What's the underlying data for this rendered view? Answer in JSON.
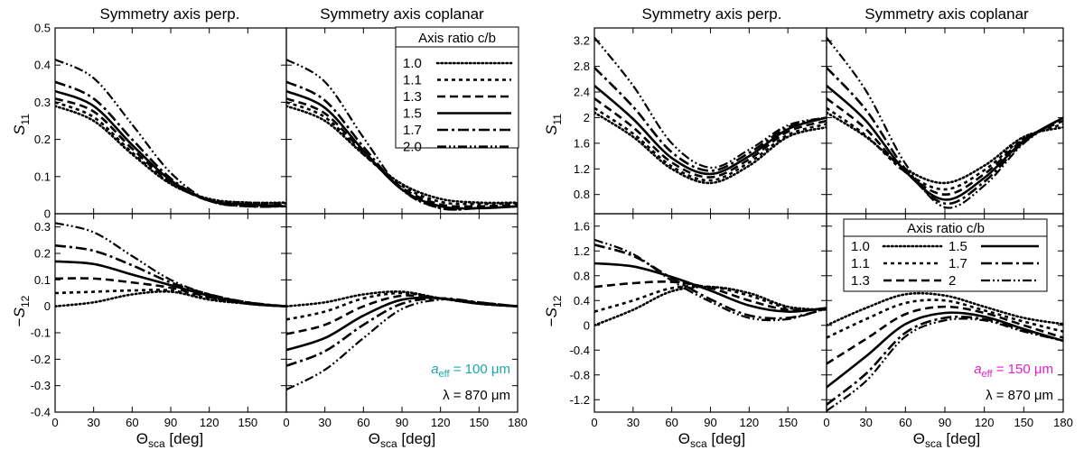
{
  "colors": {
    "cyan_annotation": "#1aa7a7",
    "magenta_annotation": "#e020d0",
    "ink": "#000000"
  },
  "figure": {
    "left_group": {
      "title_perp": "Symmetry axis perp.",
      "title_copl": "Symmetry axis coplanar"
    },
    "right_group": {
      "title_perp": "Symmetry axis perp.",
      "title_copl": "Symmetry axis coplanar"
    },
    "ylabel_s11": {
      "main": "S",
      "sub": "11"
    },
    "ylabel_s12": {
      "prefix": "−",
      "main": "S",
      "sub": "12"
    },
    "xlabel": {
      "main": "Θ",
      "sub": "sca",
      "suffix": " [deg]"
    },
    "annot_left": {
      "a": "a",
      "sub": "eff",
      "value": " = 100 μm"
    },
    "annot_right": {
      "a": "a",
      "sub": "eff",
      "value": " = 150 μm"
    },
    "lambda_left": "λ = 870 μm",
    "lambda_right": "λ = 870 μm",
    "legend_title": "Axis ratio c/b",
    "legend_labels_left": [
      "1.0",
      "1.1",
      "1.3",
      "1.5",
      "1.7",
      "2.0"
    ],
    "legend_labels_right": [
      "1.0",
      "1.1",
      "1.3",
      "1.5",
      "1.7",
      "2"
    ]
  },
  "chart_data": {
    "type": "line",
    "legend_title": "Axis ratio c/b",
    "series_names": [
      "1.0",
      "1.1",
      "1.3",
      "1.5",
      "1.7",
      "2.0"
    ],
    "x": [
      0,
      30,
      60,
      90,
      120,
      150,
      180
    ],
    "xlabel": "Θsca [deg]",
    "xticks_left": [
      0,
      30,
      60,
      90,
      120,
      150
    ],
    "xticks_right": [
      0,
      30,
      60,
      90,
      120,
      150,
      180
    ],
    "panels": [
      {
        "id": "L_S11_perp",
        "title": "Symmetry axis perp.",
        "ylabel": "S11",
        "ylim": [
          0,
          0.5
        ],
        "yticks": [
          0,
          0.1,
          0.2,
          0.3,
          0.4,
          0.5
        ],
        "series": [
          [
            0.29,
            0.25,
            0.16,
            0.08,
            0.04,
            0.03,
            0.03
          ],
          [
            0.3,
            0.26,
            0.165,
            0.082,
            0.038,
            0.03,
            0.028
          ],
          [
            0.31,
            0.275,
            0.175,
            0.085,
            0.035,
            0.025,
            0.025
          ],
          [
            0.33,
            0.29,
            0.185,
            0.09,
            0.035,
            0.025,
            0.02
          ],
          [
            0.355,
            0.31,
            0.2,
            0.095,
            0.035,
            0.02,
            0.02
          ],
          [
            0.415,
            0.365,
            0.24,
            0.11,
            0.035,
            0.02,
            0.02
          ]
        ]
      },
      {
        "id": "L_S11_copl",
        "title": "Symmetry axis coplanar",
        "ylabel": "S11",
        "ylim": [
          0,
          0.5
        ],
        "yticks": [
          0,
          0.1,
          0.2,
          0.3,
          0.4,
          0.5
        ],
        "series": [
          [
            0.29,
            0.25,
            0.16,
            0.08,
            0.04,
            0.03,
            0.03
          ],
          [
            0.3,
            0.26,
            0.16,
            0.075,
            0.032,
            0.026,
            0.028
          ],
          [
            0.31,
            0.27,
            0.165,
            0.07,
            0.025,
            0.02,
            0.025
          ],
          [
            0.33,
            0.285,
            0.17,
            0.065,
            0.02,
            0.015,
            0.02
          ],
          [
            0.355,
            0.305,
            0.18,
            0.065,
            0.015,
            0.015,
            0.02
          ],
          [
            0.415,
            0.355,
            0.205,
            0.065,
            0.015,
            0.015,
            0.02
          ]
        ]
      },
      {
        "id": "L_S12_perp",
        "title": "Symmetry axis perp.",
        "ylabel": "−S12",
        "ylim": [
          -0.4,
          0.35
        ],
        "yticks": [
          -0.4,
          -0.3,
          -0.2,
          -0.1,
          0,
          0.1,
          0.2,
          0.3
        ],
        "series": [
          [
            0.0,
            0.015,
            0.045,
            0.055,
            0.025,
            0.01,
            0.0
          ],
          [
            0.05,
            0.055,
            0.06,
            0.06,
            0.03,
            0.01,
            0.0
          ],
          [
            0.105,
            0.105,
            0.09,
            0.07,
            0.035,
            0.01,
            0.0
          ],
          [
            0.17,
            0.16,
            0.12,
            0.08,
            0.04,
            0.01,
            0.0
          ],
          [
            0.23,
            0.21,
            0.155,
            0.09,
            0.045,
            0.015,
            0.0
          ],
          [
            0.315,
            0.28,
            0.19,
            0.1,
            0.045,
            0.015,
            0.0
          ]
        ]
      },
      {
        "id": "L_S12_copl",
        "title": "Symmetry axis coplanar",
        "ylabel": "−S12",
        "ylim": [
          -0.4,
          0.35
        ],
        "yticks": [
          -0.4,
          -0.3,
          -0.2,
          -0.1,
          0,
          0.1,
          0.2,
          0.3
        ],
        "series": [
          [
            0.0,
            0.015,
            0.045,
            0.055,
            0.03,
            0.01,
            0.0
          ],
          [
            -0.05,
            -0.02,
            0.03,
            0.05,
            0.03,
            0.01,
            0.0
          ],
          [
            -0.105,
            -0.07,
            0.0,
            0.04,
            0.03,
            0.01,
            0.0
          ],
          [
            -0.165,
            -0.12,
            -0.035,
            0.025,
            0.03,
            0.01,
            0.0
          ],
          [
            -0.225,
            -0.17,
            -0.07,
            0.01,
            0.03,
            0.015,
            0.0
          ],
          [
            -0.315,
            -0.24,
            -0.12,
            -0.01,
            0.025,
            0.015,
            0.0
          ]
        ]
      },
      {
        "id": "R_S11_perp",
        "title": "Symmetry axis perp.",
        "ylabel": "S11",
        "ylim": [
          0.5,
          3.4
        ],
        "yticks": [
          0.8,
          1.2,
          1.6,
          2.0,
          2.4,
          2.8,
          3.2
        ],
        "series": [
          [
            2.08,
            1.7,
            1.2,
            0.98,
            1.25,
            1.7,
            1.85
          ],
          [
            2.15,
            1.75,
            1.24,
            1.02,
            1.3,
            1.73,
            1.9
          ],
          [
            2.3,
            1.85,
            1.3,
            1.07,
            1.35,
            1.78,
            1.95
          ],
          [
            2.5,
            1.98,
            1.37,
            1.12,
            1.4,
            1.82,
            2.0
          ],
          [
            2.78,
            2.17,
            1.46,
            1.17,
            1.45,
            1.85,
            2.0
          ],
          [
            3.25,
            2.5,
            1.6,
            1.22,
            1.5,
            1.88,
            2.0
          ]
        ]
      },
      {
        "id": "R_S11_copl",
        "title": "Symmetry axis coplanar",
        "ylabel": "S11",
        "ylim": [
          0.5,
          3.4
        ],
        "yticks": [
          0.8,
          1.2,
          1.6,
          2.0,
          2.4,
          2.8,
          3.2
        ],
        "series": [
          [
            2.08,
            1.7,
            1.2,
            0.98,
            1.25,
            1.7,
            1.85
          ],
          [
            2.15,
            1.72,
            1.15,
            0.88,
            1.18,
            1.68,
            1.9
          ],
          [
            2.3,
            1.82,
            1.15,
            0.8,
            1.12,
            1.66,
            1.95
          ],
          [
            2.5,
            1.95,
            1.16,
            0.72,
            1.06,
            1.64,
            2.0
          ],
          [
            2.78,
            2.12,
            1.2,
            0.66,
            1.0,
            1.62,
            2.0
          ],
          [
            3.25,
            2.42,
            1.28,
            0.6,
            0.94,
            1.6,
            2.0
          ]
        ]
      },
      {
        "id": "R_S12_perp",
        "title": "Symmetry axis perp.",
        "ylabel": "−S12",
        "ylim": [
          -1.4,
          1.8
        ],
        "yticks": [
          -1.2,
          -0.8,
          -0.4,
          0,
          0.4,
          0.8,
          1.2,
          1.6
        ],
        "series": [
          [
            0.0,
            0.25,
            0.55,
            0.62,
            0.52,
            0.3,
            0.25
          ],
          [
            0.22,
            0.4,
            0.6,
            0.62,
            0.48,
            0.28,
            0.25
          ],
          [
            0.62,
            0.68,
            0.7,
            0.6,
            0.4,
            0.25,
            0.27
          ],
          [
            1.0,
            0.95,
            0.78,
            0.56,
            0.32,
            0.22,
            0.28
          ],
          [
            1.3,
            1.12,
            0.76,
            0.42,
            0.16,
            0.12,
            0.27
          ],
          [
            1.38,
            1.15,
            0.72,
            0.38,
            0.12,
            0.1,
            0.28
          ]
        ]
      },
      {
        "id": "R_S12_copl",
        "title": "Symmetry axis coplanar",
        "ylabel": "−S12",
        "ylim": [
          -1.4,
          1.8
        ],
        "yticks": [
          -1.2,
          -0.8,
          -0.4,
          0,
          0.4,
          0.8,
          1.2,
          1.6
        ],
        "series": [
          [
            0.0,
            0.28,
            0.5,
            0.48,
            0.3,
            0.12,
            0.02
          ],
          [
            -0.2,
            0.1,
            0.36,
            0.4,
            0.24,
            0.06,
            -0.1
          ],
          [
            -0.62,
            -0.22,
            0.18,
            0.3,
            0.2,
            0.0,
            -0.2
          ],
          [
            -1.0,
            -0.5,
            0.02,
            0.2,
            0.14,
            -0.06,
            -0.25
          ],
          [
            -1.28,
            -0.78,
            -0.12,
            0.12,
            0.1,
            -0.08,
            -0.25
          ],
          [
            -1.38,
            -0.9,
            -0.18,
            0.08,
            0.08,
            -0.1,
            -0.25
          ]
        ]
      }
    ]
  }
}
